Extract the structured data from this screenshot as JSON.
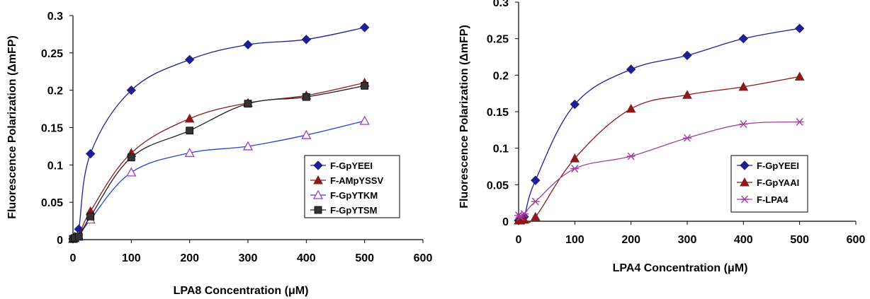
{
  "chart_data": [
    {
      "type": "line",
      "xlabel": "LPA8 Concentration (μM)",
      "ylabel": "Fluorescence Polarization (ΔmFP)",
      "xlim": [
        0,
        600
      ],
      "ylim": [
        0,
        0.3
      ],
      "xticks": [
        "0",
        "100",
        "200",
        "300",
        "400",
        "500",
        "600"
      ],
      "yticks": [
        "0",
        "0.05",
        "0.1",
        "0.15",
        "0.2",
        "0.25",
        "0.3"
      ],
      "grid": false,
      "legend_position": "lower-right",
      "x": [
        0,
        3,
        10,
        30,
        100,
        200,
        300,
        400,
        500
      ],
      "series": [
        {
          "name": "F-GpYEEI",
          "marker": "diamond",
          "color": "#1f1f8f",
          "values": [
            0.001,
            0.004,
            0.014,
            0.115,
            0.2,
            0.241,
            0.261,
            0.268,
            0.284
          ]
        },
        {
          "name": "F-AMpYSSV",
          "marker": "triangle-filled",
          "color": "#8b1a1a",
          "values": [
            0.001,
            0.002,
            0.005,
            0.038,
            0.116,
            0.162,
            0.183,
            0.193,
            0.21
          ]
        },
        {
          "name": "F-GpYTKM",
          "marker": "triangle-open",
          "color": "#9b3fbf",
          "line_color": "#2244cc",
          "values": [
            0.001,
            0.002,
            0.004,
            0.027,
            0.09,
            0.116,
            0.125,
            0.14,
            0.159
          ]
        },
        {
          "name": "F-GpYTSM",
          "marker": "square",
          "color": "#333333",
          "line_color": "#222222",
          "values": [
            0.001,
            0.002,
            0.004,
            0.031,
            0.11,
            0.146,
            0.182,
            0.191,
            0.206
          ]
        }
      ]
    },
    {
      "type": "line",
      "xlabel": "LPA4 Concentration (μM)",
      "ylabel": "Fluorescence Polarization (ΔmFP)",
      "xlim": [
        0,
        600
      ],
      "ylim": [
        0,
        0.3
      ],
      "xticks": [
        "0",
        "100",
        "200",
        "300",
        "400",
        "500",
        "600"
      ],
      "yticks": [
        "0",
        "0.05",
        "0.1",
        "0.15",
        "0.2",
        "0.25",
        "0.3"
      ],
      "grid": false,
      "legend_position": "lower-right",
      "x": [
        0,
        3,
        10,
        30,
        100,
        200,
        300,
        400,
        500
      ],
      "series": [
        {
          "name": "F-GpYEEI",
          "marker": "diamond",
          "color": "#1f1f8f",
          "values": [
            0.001,
            0.002,
            0.006,
            0.056,
            0.16,
            0.208,
            0.227,
            0.25,
            0.264
          ]
        },
        {
          "name": "F-GpYAAI",
          "marker": "triangle-filled",
          "color": "#8b1a1a",
          "values": [
            0.001,
            0.001,
            0.002,
            0.006,
            0.086,
            0.154,
            0.173,
            0.184,
            0.198
          ]
        },
        {
          "name": "F-LPA4",
          "marker": "asterisk",
          "color": "#a03fa0",
          "values": [
            0.008,
            0.006,
            0.01,
            0.027,
            0.072,
            0.089,
            0.114,
            0.133,
            0.136
          ]
        }
      ]
    }
  ]
}
